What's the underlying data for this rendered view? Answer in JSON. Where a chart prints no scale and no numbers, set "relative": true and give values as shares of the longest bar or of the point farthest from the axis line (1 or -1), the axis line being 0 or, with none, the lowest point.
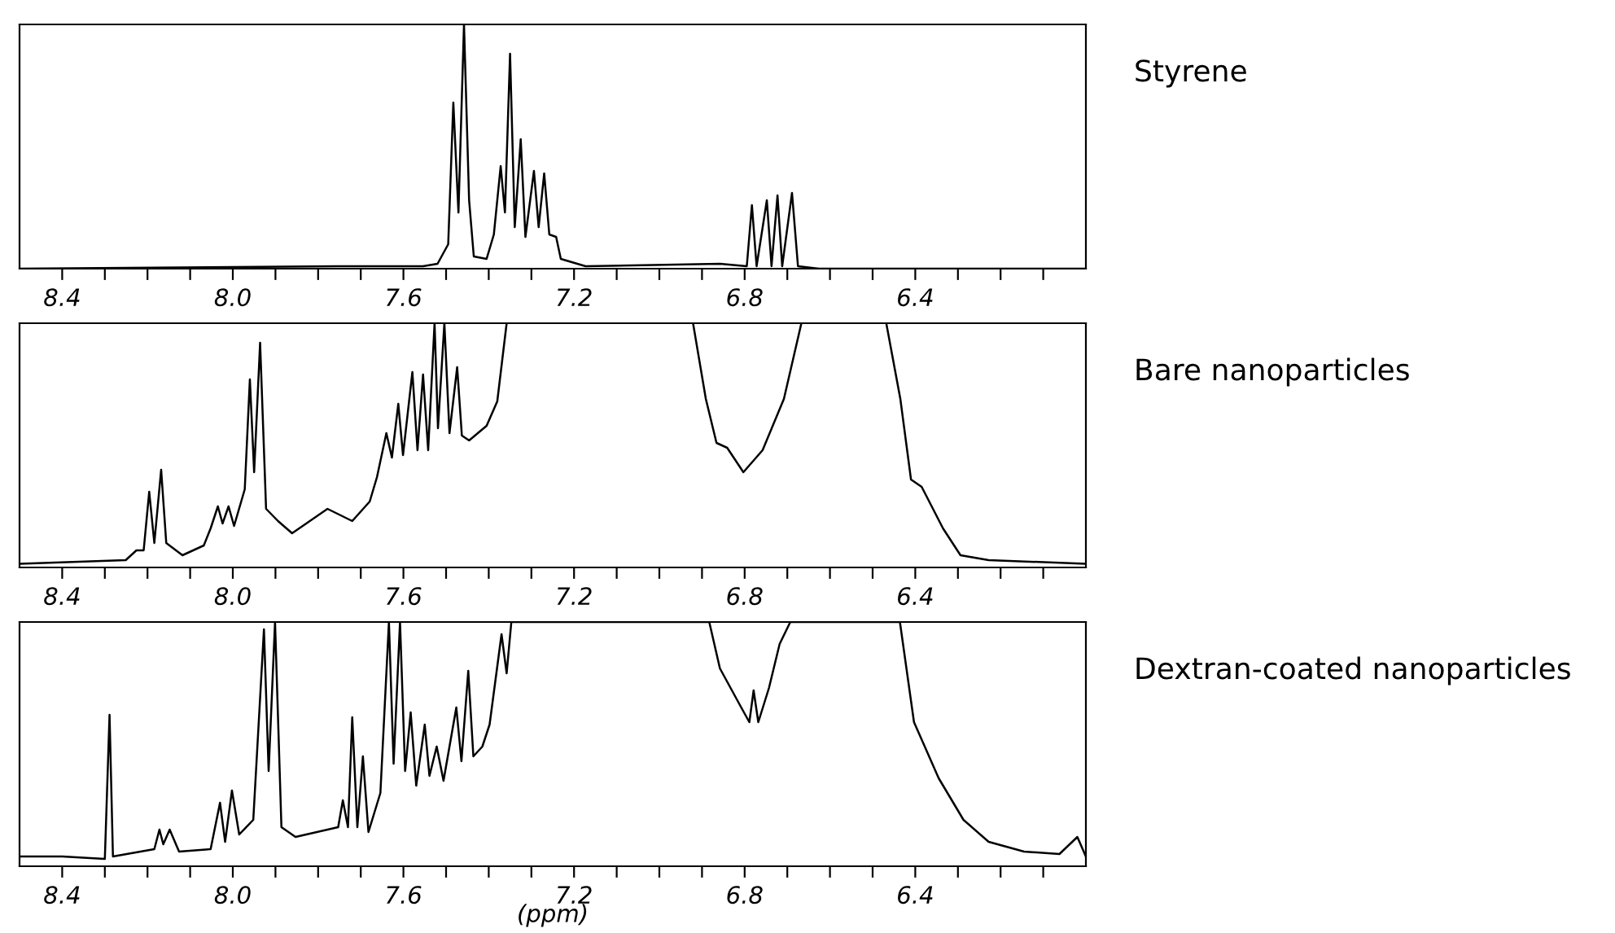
{
  "chart_data": [
    {
      "type": "line",
      "relative": true,
      "tick_labels": "x",
      "xlim": [
        8.5,
        6.0
      ],
      "xticks": [
        8.4,
        {
          "value": 8.3,
          "label": null
        },
        {
          "value": 8.2,
          "label": null
        },
        {
          "value": 8.1,
          "label": null
        },
        {
          "value": 8.0,
          "label": "8.0"
        },
        {
          "value": 7.9,
          "label": null
        },
        {
          "value": 7.8,
          "label": null
        },
        {
          "value": 7.7,
          "label": null
        },
        7.6,
        {
          "value": 7.5,
          "label": null
        },
        {
          "value": 7.4,
          "label": null
        },
        {
          "value": 7.3,
          "label": null
        },
        7.2,
        {
          "value": 7.1,
          "label": null
        },
        {
          "value": 7.0,
          "label": null
        },
        {
          "value": 6.9,
          "label": null
        },
        6.8,
        {
          "value": 6.7,
          "label": null
        },
        {
          "value": 6.6,
          "label": null
        },
        {
          "value": 6.5,
          "label": null
        },
        6.4,
        {
          "value": 6.3,
          "label": null
        },
        {
          "value": 6.2,
          "label": null
        },
        {
          "value": 6.1,
          "label": null
        }
      ],
      "series": [
        {
          "name": "Styrene",
          "color": "#000000",
          "x": [
            8.5,
            7.753,
            7.554,
            7.52,
            7.495,
            7.483,
            7.471,
            7.458,
            7.446,
            7.435,
            7.405,
            7.388,
            7.372,
            7.362,
            7.35,
            7.339,
            7.325,
            7.314,
            7.294,
            7.283,
            7.27,
            7.258,
            7.242,
            7.231,
            7.173,
            6.858,
            6.795,
            6.783,
            6.772,
            6.748,
            6.737,
            6.723,
            6.712,
            6.689,
            6.675,
            6.626,
            6.0
          ],
          "values": [
            0,
            0.01,
            0.01,
            0.02,
            0.1,
            0.68,
            0.23,
            1.0,
            0.28,
            0.05,
            0.04,
            0.14,
            0.42,
            0.23,
            0.88,
            0.17,
            0.53,
            0.13,
            0.4,
            0.17,
            0.39,
            0.14,
            0.13,
            0.04,
            0.01,
            0.02,
            0.01,
            0.26,
            0.01,
            0.28,
            0.01,
            0.3,
            0.01,
            0.31,
            0.01,
            0,
            0
          ]
        }
      ]
    },
    {
      "type": "line",
      "relative": true,
      "tick_labels": "x",
      "xlim": [
        8.5,
        6.0
      ],
      "xticks": [
        8.4,
        {
          "value": 8.3,
          "label": null
        },
        {
          "value": 8.2,
          "label": null
        },
        {
          "value": 8.1,
          "label": null
        },
        {
          "value": 8.0,
          "label": "8.0"
        },
        {
          "value": 7.9,
          "label": null
        },
        {
          "value": 7.8,
          "label": null
        },
        {
          "value": 7.7,
          "label": null
        },
        7.6,
        {
          "value": 7.5,
          "label": null
        },
        {
          "value": 7.4,
          "label": null
        },
        {
          "value": 7.3,
          "label": null
        },
        7.2,
        {
          "value": 7.1,
          "label": null
        },
        {
          "value": 7.0,
          "label": null
        },
        {
          "value": 6.9,
          "label": null
        },
        6.8,
        {
          "value": 6.7,
          "label": null
        },
        {
          "value": 6.6,
          "label": null
        },
        {
          "value": 6.5,
          "label": null
        },
        6.4,
        {
          "value": 6.3,
          "label": null
        },
        {
          "value": 6.2,
          "label": null
        },
        {
          "value": 6.1,
          "label": null
        }
      ],
      "series": [
        {
          "name": "Bare nanoparticles",
          "color": "#000000",
          "x": [
            8.5,
            8.251,
            8.226,
            8.209,
            8.196,
            8.184,
            8.168,
            8.156,
            8.118,
            8.068,
            8.052,
            8.035,
            8.024,
            8.01,
            7.997,
            7.972,
            7.96,
            7.95,
            7.936,
            7.922,
            7.894,
            7.861,
            7.778,
            7.72,
            7.679,
            7.662,
            7.64,
            7.627,
            7.612,
            7.601,
            7.579,
            7.567,
            7.554,
            7.542,
            7.527,
            7.519,
            7.504,
            7.492,
            7.474,
            7.463,
            7.446,
            7.405,
            7.38,
            7.358,
            7.1,
            6.921,
            6.891,
            6.866,
            6.841,
            6.803,
            6.758,
            6.708,
            6.667,
            6.55,
            6.468,
            6.435,
            6.41,
            6.385,
            6.335,
            6.294,
            6.228,
            6.0
          ],
          "values": [
            0.015,
            0.03,
            0.07,
            0.07,
            0.31,
            0.1,
            0.4,
            0.1,
            0.05,
            0.09,
            0.16,
            0.25,
            0.18,
            0.25,
            0.17,
            0.32,
            0.77,
            0.39,
            0.92,
            0.24,
            0.19,
            0.14,
            0.24,
            0.19,
            0.27,
            0.37,
            0.55,
            0.45,
            0.67,
            0.46,
            0.8,
            0.48,
            0.79,
            0.48,
            1.0,
            0.57,
            1.0,
            0.55,
            0.82,
            0.54,
            0.52,
            0.58,
            0.68,
            1.0,
            null,
            1.0,
            0.69,
            0.51,
            0.49,
            0.39,
            0.48,
            0.69,
            1.0,
            null,
            1.0,
            0.69,
            0.36,
            0.33,
            0.16,
            0.05,
            0.03,
            0.015
          ]
        }
      ]
    },
    {
      "type": "line",
      "xlabel": "(ppm)",
      "relative": true,
      "tick_labels": "x",
      "xlim": [
        8.5,
        6.0
      ],
      "xticks": [
        8.4,
        {
          "value": 8.3,
          "label": null
        },
        {
          "value": 8.2,
          "label": null
        },
        {
          "value": 8.1,
          "label": null
        },
        {
          "value": 8.0,
          "label": "8.0"
        },
        {
          "value": 7.9,
          "label": null
        },
        {
          "value": 7.8,
          "label": null
        },
        {
          "value": 7.7,
          "label": null
        },
        7.6,
        {
          "value": 7.5,
          "label": null
        },
        {
          "value": 7.4,
          "label": null
        },
        {
          "value": 7.3,
          "label": null
        },
        7.2,
        {
          "value": 7.1,
          "label": null
        },
        {
          "value": 7.0,
          "label": null
        },
        {
          "value": 6.9,
          "label": null
        },
        6.8,
        {
          "value": 6.7,
          "label": null
        },
        {
          "value": 6.6,
          "label": null
        },
        {
          "value": 6.5,
          "label": null
        },
        6.4,
        {
          "value": 6.3,
          "label": null
        },
        {
          "value": 6.2,
          "label": null
        },
        {
          "value": 6.1,
          "label": null
        }
      ],
      "series": [
        {
          "name": "Dextran-coated nanoparticles",
          "color": "#000000",
          "x": [
            8.5,
            8.4,
            8.3,
            8.289,
            8.281,
            8.184,
            8.172,
            8.163,
            8.148,
            8.126,
            8.052,
            8.03,
            8.018,
            8.002,
            7.985,
            7.952,
            7.927,
            7.916,
            7.901,
            7.886,
            7.853,
            7.753,
            7.742,
            7.73,
            7.72,
            7.708,
            7.695,
            7.682,
            7.654,
            7.634,
            7.623,
            7.608,
            7.596,
            7.583,
            7.57,
            7.55,
            7.539,
            7.522,
            7.506,
            7.476,
            7.464,
            7.448,
            7.436,
            7.415,
            7.398,
            7.37,
            7.358,
            7.347,
            7.33,
            6.883,
            6.858,
            6.808,
            6.789,
            6.779,
            6.768,
            6.743,
            6.718,
            6.693,
            6.436,
            6.403,
            6.345,
            6.287,
            6.228,
            6.145,
            6.062,
            6.02,
            6.0
          ],
          "values": [
            0.04,
            0.04,
            0.03,
            0.62,
            0.04,
            0.07,
            0.15,
            0.09,
            0.15,
            0.06,
            0.07,
            0.26,
            0.1,
            0.31,
            0.13,
            0.19,
            0.97,
            0.39,
            1.0,
            0.16,
            0.12,
            0.16,
            0.27,
            0.16,
            0.61,
            0.16,
            0.45,
            0.14,
            0.3,
            1.0,
            0.42,
            1.0,
            0.39,
            0.63,
            0.33,
            0.58,
            0.37,
            0.49,
            0.35,
            0.65,
            0.43,
            0.8,
            0.45,
            0.49,
            0.58,
            0.95,
            0.79,
            1.0,
            1.0,
            1.0,
            0.81,
            0.65,
            0.59,
            0.72,
            0.59,
            0.73,
            0.91,
            1.0,
            1.0,
            0.59,
            0.36,
            0.19,
            0.1,
            0.06,
            0.05,
            0.12,
            0.04
          ]
        }
      ]
    }
  ]
}
